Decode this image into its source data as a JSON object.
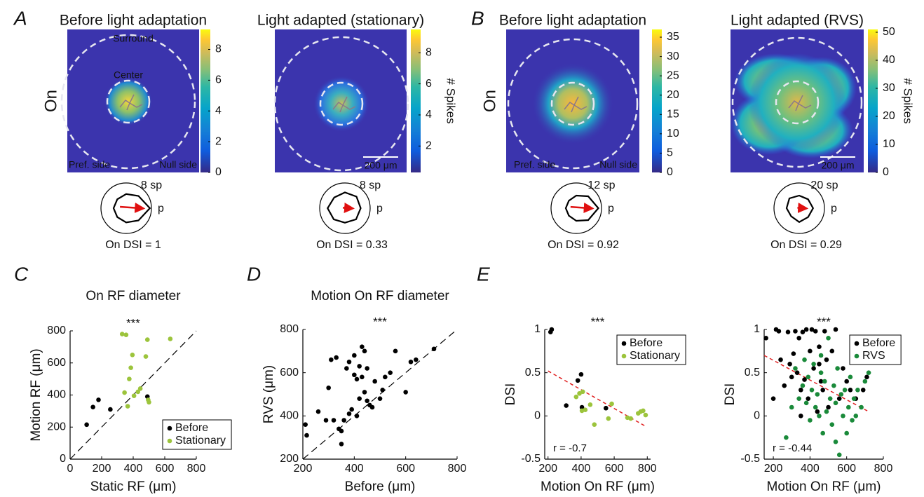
{
  "chart_data": [
    {
      "type": "heatmap",
      "panel": "A",
      "title": "Before light adaptation",
      "row_label": "On",
      "annotations": [
        "Surround",
        "Center",
        "Pref. side",
        "Null side"
      ],
      "clim": [
        0,
        9.3
      ],
      "cticks": [
        0,
        2,
        4,
        6,
        8
      ]
    },
    {
      "type": "heatmap",
      "title": "Light adapted (stationary)",
      "clim": [
        0.3,
        9.5
      ],
      "cticks": [
        2,
        4,
        6,
        8
      ],
      "colorbar_label": "# Spikes",
      "scalebar": "200 μm"
    },
    {
      "type": "heatmap",
      "panel": "B",
      "title": "Before light adaptation",
      "row_label": "On",
      "annotations": [
        "Pref. side",
        "Null side"
      ],
      "clim": [
        0,
        37
      ],
      "cticks": [
        0,
        5,
        10,
        15,
        20,
        25,
        30,
        35
      ]
    },
    {
      "type": "heatmap",
      "title": "Light adapted (RVS)",
      "clim": [
        0,
        51
      ],
      "cticks": [
        0,
        10,
        20,
        30,
        40,
        50
      ],
      "colorbar_label": "# Spikes",
      "scalebar": "200 μm"
    },
    {
      "type": "polar",
      "rmax": {
        "value": 8,
        "label": "8 sp"
      },
      "pref_label": "p",
      "values": [
        7.5,
        5.5,
        4.5,
        4,
        4,
        4,
        4.5,
        5.5
      ],
      "dsi": {
        "value": 1,
        "label": "On DSI = 1"
      }
    },
    {
      "type": "polar",
      "rmax": {
        "value": 8,
        "label": "8 sp"
      },
      "pref_label": "p",
      "values": [
        5,
        5.2,
        5,
        4.8,
        5.5,
        5,
        4.6,
        5
      ],
      "dsi": {
        "value": 0.33,
        "label": "On DSI = 0.33"
      }
    },
    {
      "type": "polar",
      "rmax": {
        "value": 12,
        "label": "12 sp"
      },
      "pref_label": "p",
      "values": [
        10.5,
        8,
        6,
        5,
        5,
        5,
        6,
        8
      ],
      "dsi": {
        "value": 0.92,
        "label": "On DSI = 0.92"
      }
    },
    {
      "type": "polar",
      "rmax": {
        "value": 20,
        "label": "20 sp"
      },
      "pref_label": "p",
      "values": [
        11,
        10,
        10,
        11,
        10,
        9,
        11,
        10
      ],
      "dsi": {
        "value": 0.29,
        "label": "On DSI = 0.29"
      }
    },
    {
      "type": "scatter",
      "panel": "C",
      "title": "On RF diameter",
      "stars": "***",
      "xlabel": "Static RF (μm)",
      "ylabel": "Motion RF (μm)",
      "xlim": [
        0,
        800
      ],
      "ylim": [
        0,
        800
      ],
      "xticks": [
        0,
        200,
        400,
        600,
        800
      ],
      "yticks": [
        0,
        200,
        400,
        600,
        800
      ],
      "diagonal": true,
      "legend": "lower right",
      "series": [
        {
          "name": "Before",
          "color": "#000000",
          "x": [
            105,
            145,
            180,
            255,
            490
          ],
          "y": [
            215,
            325,
            370,
            310,
            390
          ]
        },
        {
          "name": "Stationary",
          "color": "#9cc43c",
          "x": [
            330,
            355,
            345,
            365,
            375,
            385,
            395,
            405,
            430,
            445,
            480,
            490,
            495,
            500,
            635
          ],
          "y": [
            780,
            775,
            415,
            330,
            500,
            570,
            650,
            395,
            420,
            440,
            640,
            745,
            370,
            355,
            750
          ]
        }
      ]
    },
    {
      "type": "scatter",
      "panel": "D",
      "title": "Motion On RF diameter",
      "stars": "***",
      "xlabel": "Before (μm)",
      "ylabel": "RVS  (μm)",
      "xlim": [
        200,
        800
      ],
      "ylim": [
        200,
        800
      ],
      "xticks": [
        200,
        400,
        600,
        800
      ],
      "yticks": [
        200,
        400,
        600,
        800
      ],
      "diagonal": true,
      "series": [
        {
          "color": "#000000",
          "x": [
            210,
            215,
            260,
            300,
            310,
            320,
            330,
            340,
            350,
            360,
            370,
            380,
            390,
            400,
            400,
            410,
            410,
            420,
            420,
            430,
            430,
            440,
            440,
            450,
            450,
            460,
            470,
            480,
            500,
            510,
            520,
            540,
            560,
            600,
            620,
            640,
            710,
            290,
            350,
            380
          ],
          "y": [
            360,
            310,
            420,
            530,
            660,
            380,
            670,
            340,
            270,
            380,
            620,
            650,
            430,
            590,
            680,
            400,
            570,
            630,
            480,
            720,
            580,
            700,
            510,
            620,
            470,
            450,
            440,
            560,
            480,
            520,
            580,
            600,
            700,
            510,
            650,
            660,
            710,
            380,
            330,
            410
          ]
        }
      ]
    },
    {
      "type": "scatter",
      "panel": "E",
      "stars": "***",
      "xlabel": "Motion On RF (μm)",
      "ylabel": "DSI",
      "xlim": [
        180,
        820
      ],
      "ylim": [
        -0.5,
        1
      ],
      "xticks": [
        200,
        400,
        600,
        800
      ],
      "yticks": [
        -0.5,
        0,
        0.5,
        1
      ],
      "legend": "upper right",
      "annotation": "r = -0.7",
      "fit": {
        "color": "#e02020",
        "x": [
          200,
          790
        ],
        "y": [
          0.52,
          -0.12
        ]
      },
      "series": [
        {
          "name": "Before",
          "color": "#000000",
          "x": [
            215,
            222,
            310,
            380,
            400,
            405,
            550
          ],
          "y": [
            0.97,
            1,
            0.12,
            0.41,
            0.48,
            0.1,
            0.09
          ]
        },
        {
          "name": "Stationary",
          "color": "#9cc43c",
          "x": [
            370,
            390,
            410,
            405,
            425,
            455,
            480,
            565,
            585,
            680,
            700,
            745,
            760,
            775,
            790
          ],
          "y": [
            0.22,
            0.26,
            0.28,
            0.06,
            0.07,
            0.13,
            -0.1,
            -0.03,
            0.14,
            -0.02,
            -0.03,
            0.03,
            0.05,
            0.06,
            0.01
          ]
        }
      ]
    },
    {
      "type": "scatter",
      "stars": "***",
      "xlabel": "Motion On RF (μm)",
      "ylabel": "DSI",
      "xlim": [
        150,
        800
      ],
      "ylim": [
        -0.5,
        1
      ],
      "xticks": [
        200,
        400,
        600,
        800
      ],
      "yticks": [
        -0.5,
        0,
        0.5,
        1
      ],
      "legend": "upper right",
      "annotation": "r = -0.44",
      "fit": {
        "color": "#e02020",
        "x": [
          150,
          720
        ],
        "y": [
          0.7,
          0.05
        ]
      },
      "series": [
        {
          "name": "Before",
          "color": "#000000",
          "x": [
            160,
            200,
            215,
            230,
            260,
            280,
            290,
            300,
            310,
            320,
            330,
            340,
            350,
            360,
            370,
            380,
            390,
            400,
            410,
            420,
            430,
            440,
            450,
            460,
            470,
            480,
            490,
            500,
            520,
            540,
            560,
            580,
            600,
            620,
            650,
            690,
            710,
            240,
            350,
            450
          ],
          "y": [
            0.9,
            0.2,
            1,
            0.98,
            0.35,
            0.97,
            0.6,
            0.45,
            0.72,
            0.98,
            0.5,
            0.9,
            0.3,
            0.97,
            0.42,
            1,
            0.2,
            0.75,
            1,
            0.55,
            0.98,
            0.05,
            0.6,
            0.4,
            0.3,
            0.98,
            0.65,
            0.1,
            0.75,
            1,
            0.2,
            0.55,
            0.4,
            0.3,
            0.2,
            0.3,
            0.45,
            0.65,
            0,
            0.8
          ]
        },
        {
          "name": "RVS",
          "color": "#1a8a3a",
          "x": [
            270,
            300,
            320,
            340,
            360,
            370,
            380,
            390,
            400,
            410,
            420,
            430,
            440,
            450,
            460,
            470,
            480,
            490,
            500,
            510,
            520,
            530,
            540,
            550,
            560,
            570,
            580,
            590,
            600,
            610,
            620,
            630,
            640,
            650,
            660,
            680,
            700,
            720,
            460,
            540
          ],
          "y": [
            -0.25,
            0.1,
            0.55,
            0.2,
            0.35,
            0.65,
            0.15,
            0.45,
            -0.05,
            0.3,
            0.6,
            0.1,
            0.25,
            0,
            0.7,
            -0.2,
            0.4,
            0.05,
            0.9,
            0.2,
            -0.1,
            0.35,
            0.15,
            0.55,
            -0.45,
            0.25,
            0,
            0.3,
            -0.2,
            0.1,
            0.45,
            -0.05,
            0.2,
            0,
            0.3,
            0.1,
            0.4,
            0.5,
            0.5,
            -0.3
          ]
        }
      ]
    }
  ]
}
